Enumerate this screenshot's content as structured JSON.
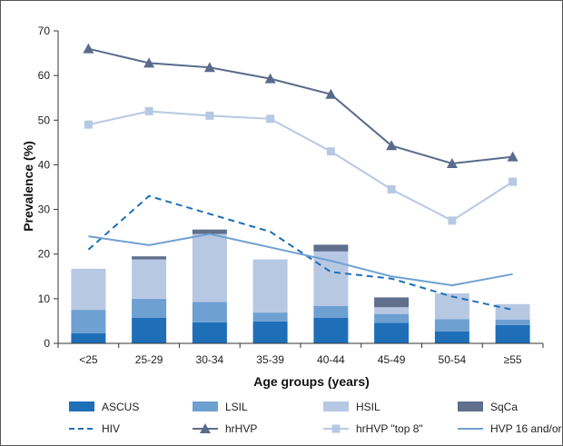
{
  "chart_data": {
    "type": "bar",
    "categories": [
      "<25",
      "25-29",
      "30-34",
      "35-39",
      "40-44",
      "45-49",
      "50-54",
      "≥55"
    ],
    "xlabel": "Age groups (years)",
    "ylabel": "Prevalence (%)",
    "ylim": [
      0,
      70
    ],
    "yticks": [
      0,
      10,
      20,
      30,
      40,
      50,
      60,
      70
    ],
    "grid": false,
    "legend_position": "bottom",
    "stacked_series": [
      {
        "name": "ASCUS",
        "color": "#1f6fb8",
        "values": [
          2.3,
          5.7,
          4.7,
          4.9,
          5.7,
          4.6,
          2.7,
          4.1
        ]
      },
      {
        "name": "LSIL",
        "color": "#6fa0d2",
        "values": [
          5.2,
          4.3,
          4.6,
          2.0,
          2.7,
          2.0,
          2.7,
          1.2
        ]
      },
      {
        "name": "HSIL",
        "color": "#b7c8e3",
        "values": [
          9.2,
          8.8,
          15.2,
          11.9,
          12.2,
          1.5,
          5.8,
          3.5
        ]
      },
      {
        "name": "SqCa",
        "color": "#5f6f8c",
        "values": [
          0,
          0.7,
          1.0,
          0,
          1.5,
          2.2,
          0,
          0
        ]
      }
    ],
    "line_series": [
      {
        "name": "HIV",
        "color": "#1f6fb8",
        "style": "dashed",
        "marker": "none",
        "values": [
          21,
          33,
          29,
          25,
          16,
          14.5,
          10.5,
          7.5
        ]
      },
      {
        "name": "hrHVP",
        "color": "#5a6b8c",
        "style": "solid",
        "marker": "triangle",
        "values": [
          66,
          62.8,
          61.8,
          59.3,
          55.8,
          44.3,
          40.3,
          41.8
        ]
      },
      {
        "name": "hrHVP \"top 8\"",
        "color": "#b7c8e3",
        "style": "solid",
        "marker": "square",
        "values": [
          49,
          52,
          51,
          50.3,
          43,
          34.5,
          27.5,
          36.2
        ]
      },
      {
        "name": "HVP 16 and/or 18",
        "color": "#6fa0d2",
        "style": "solid",
        "marker": "none",
        "values": [
          24,
          22,
          24.5,
          21.5,
          18.5,
          15,
          13,
          15.5
        ]
      }
    ]
  }
}
